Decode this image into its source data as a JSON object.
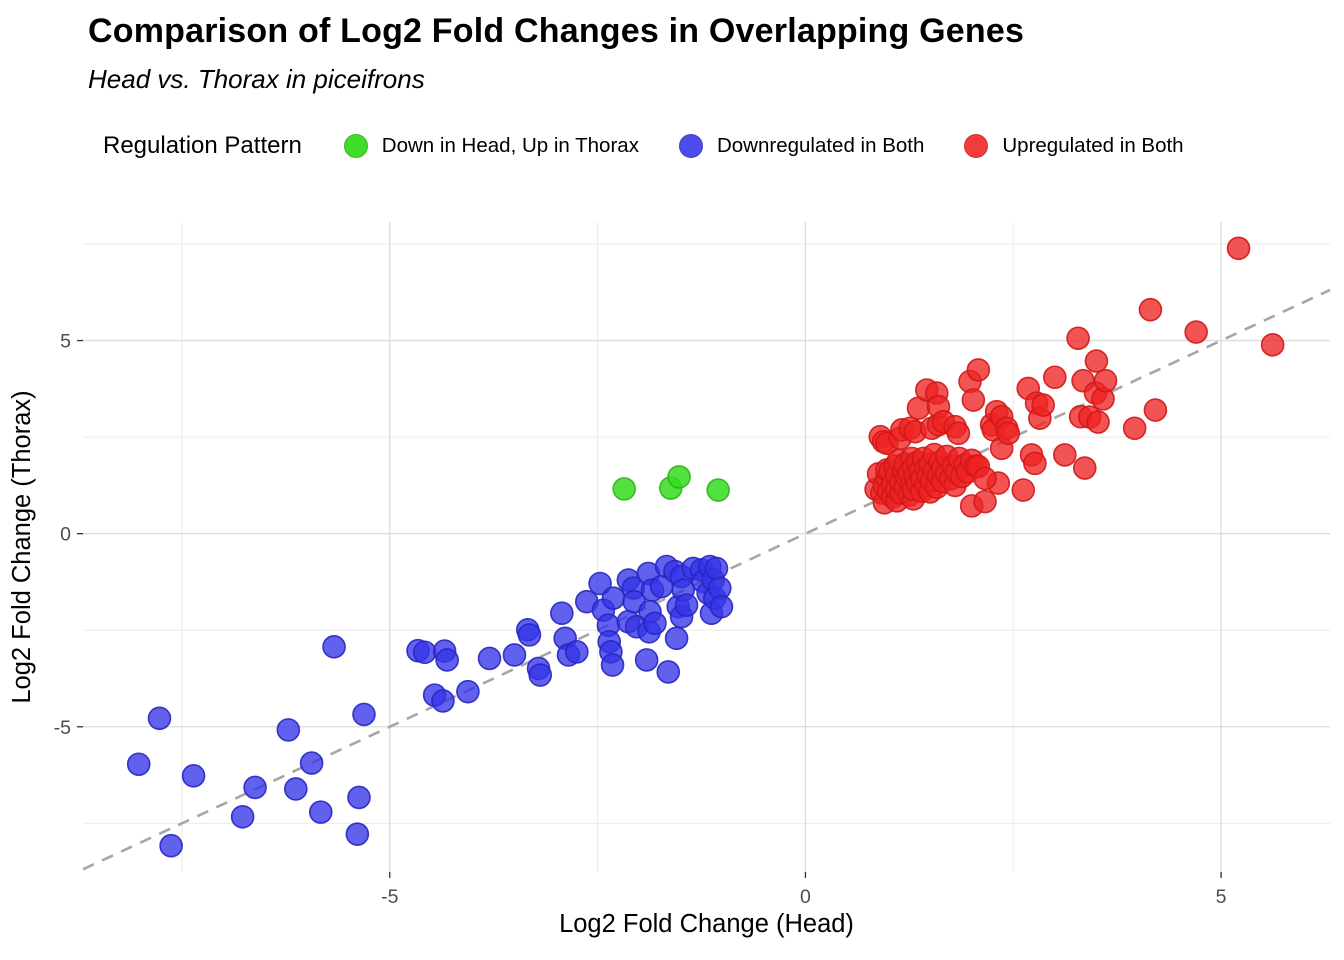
{
  "chart_data": {
    "type": "scatter",
    "title": "Comparison of Log2 Fold Changes in Overlapping Genes",
    "subtitle": "Head vs. Thorax in piceifrons",
    "xlabel": "Log2 Fold Change (Head)",
    "ylabel": "Log2 Fold Change (Thorax)",
    "legend_title": "Regulation Pattern",
    "legend_position": "top",
    "grid": "on",
    "x_range": [
      -8.69,
      6.31
    ],
    "y_range": [
      -8.76,
      8.07
    ],
    "x_ticks": [
      -5,
      0,
      5
    ],
    "y_ticks": [
      -5,
      0,
      5
    ],
    "x_tick_labels": [
      "-5",
      "0",
      "5"
    ],
    "y_tick_labels": [
      "-5",
      "0",
      "5"
    ],
    "x_minor_ticks": [
      -7.5,
      -2.5,
      2.5
    ],
    "y_minor_ticks": [
      -7.5,
      -2.5,
      2.5,
      7.5
    ],
    "identity_line": {
      "slope": 1,
      "intercept": 0,
      "style": "dashed",
      "color": "#a6a6a6"
    },
    "point_radius": 11,
    "series": [
      {
        "name": "Down in Head, Up in Thorax",
        "color": "#35dc1f",
        "stroke": "#2bb518",
        "opacity": 0.85,
        "points": [
          [
            -2.18,
            1.16
          ],
          [
            -1.62,
            1.18
          ],
          [
            -1.52,
            1.47
          ],
          [
            -1.05,
            1.13
          ]
        ]
      },
      {
        "name": "Downregulated in Both",
        "color": "#3434e8",
        "stroke": "#2626c0",
        "opacity": 0.78,
        "points": [
          [
            -8.02,
            -5.97
          ],
          [
            -7.77,
            -4.78
          ],
          [
            -7.63,
            -8.08
          ],
          [
            -7.36,
            -6.27
          ],
          [
            -6.77,
            -7.33
          ],
          [
            -6.62,
            -6.57
          ],
          [
            -6.22,
            -5.08
          ],
          [
            -6.13,
            -6.61
          ],
          [
            -5.94,
            -5.94
          ],
          [
            -5.83,
            -7.21
          ],
          [
            -5.67,
            -2.93
          ],
          [
            -5.39,
            -7.78
          ],
          [
            -5.37,
            -6.83
          ],
          [
            -5.31,
            -4.68
          ],
          [
            -4.66,
            -3.03
          ],
          [
            -4.58,
            -3.07
          ],
          [
            -4.46,
            -4.18
          ],
          [
            -4.36,
            -4.33
          ],
          [
            -4.34,
            -3.04
          ],
          [
            -4.31,
            -3.27
          ],
          [
            -4.06,
            -4.09
          ],
          [
            -3.8,
            -3.23
          ],
          [
            -3.5,
            -3.14
          ],
          [
            -3.34,
            -2.49
          ],
          [
            -3.32,
            -2.62
          ],
          [
            -3.21,
            -3.49
          ],
          [
            -3.19,
            -3.66
          ],
          [
            -2.93,
            -2.06
          ],
          [
            -2.89,
            -2.71
          ],
          [
            -2.85,
            -3.14
          ],
          [
            -2.75,
            -3.06
          ],
          [
            -2.63,
            -1.76
          ],
          [
            -2.47,
            -1.29
          ],
          [
            -2.43,
            -1.98
          ],
          [
            -2.37,
            -2.37
          ],
          [
            -2.36,
            -2.8
          ],
          [
            -2.34,
            -3.06
          ],
          [
            -2.32,
            -3.4
          ],
          [
            -2.31,
            -1.67
          ],
          [
            -2.13,
            -1.2
          ],
          [
            -2.13,
            -2.28
          ],
          [
            -2.07,
            -1.41
          ],
          [
            -2.06,
            -1.76
          ],
          [
            -2.03,
            -2.41
          ],
          [
            -1.91,
            -3.27
          ],
          [
            -1.89,
            -1.03
          ],
          [
            -1.88,
            -2.54
          ],
          [
            -1.87,
            -2.02
          ],
          [
            -1.84,
            -1.46
          ],
          [
            -1.81,
            -2.32
          ],
          [
            -1.73,
            -1.37
          ],
          [
            -1.67,
            -0.85
          ],
          [
            -1.65,
            -3.58
          ],
          [
            -1.57,
            -0.98
          ],
          [
            -1.55,
            -2.71
          ],
          [
            -1.53,
            -1.89
          ],
          [
            -1.49,
            -1.11
          ],
          [
            -1.49,
            -2.15
          ],
          [
            -1.47,
            -1.46
          ],
          [
            -1.43,
            -1.85
          ],
          [
            -1.35,
            -0.9
          ],
          [
            -1.25,
            -0.94
          ],
          [
            -1.23,
            -1.24
          ],
          [
            -1.17,
            -1.54
          ],
          [
            -1.15,
            -0.85
          ],
          [
            -1.13,
            -2.06
          ],
          [
            -1.11,
            -1.2
          ],
          [
            -1.09,
            -1.67
          ],
          [
            -1.07,
            -0.9
          ],
          [
            -1.03,
            -1.41
          ],
          [
            -1.01,
            -1.89
          ]
        ]
      },
      {
        "name": "Upregulated in Both",
        "color": "#ee2222",
        "stroke": "#cf1717",
        "opacity": 0.78,
        "points": [
          [
            0.85,
            1.15
          ],
          [
            0.88,
            1.55
          ],
          [
            0.92,
            1.05
          ],
          [
            0.95,
            0.8
          ],
          [
            0.95,
            1.25
          ],
          [
            0.98,
            1.45
          ],
          [
            0.98,
            1.65
          ],
          [
            1.0,
            1.1
          ],
          [
            1.02,
            1.62
          ],
          [
            1.05,
            0.95
          ],
          [
            1.05,
            1.3
          ],
          [
            1.08,
            1.75
          ],
          [
            1.1,
            0.85
          ],
          [
            1.1,
            1.15
          ],
          [
            1.1,
            1.5
          ],
          [
            1.12,
            1.9
          ],
          [
            1.15,
            1.05
          ],
          [
            1.15,
            1.35
          ],
          [
            1.18,
            1.62
          ],
          [
            1.2,
            1.2
          ],
          [
            1.2,
            1.8
          ],
          [
            1.22,
            1.45
          ],
          [
            1.25,
            1.0
          ],
          [
            1.25,
            1.58
          ],
          [
            1.28,
            1.3
          ],
          [
            1.28,
            1.95
          ],
          [
            1.3,
            0.9
          ],
          [
            1.3,
            1.15
          ],
          [
            1.3,
            1.7
          ],
          [
            1.32,
            1.48
          ],
          [
            1.35,
            1.28
          ],
          [
            1.35,
            1.85
          ],
          [
            1.38,
            1.6
          ],
          [
            1.4,
            1.1
          ],
          [
            1.4,
            1.42
          ],
          [
            1.42,
            1.95
          ],
          [
            1.45,
            1.25
          ],
          [
            1.45,
            1.68
          ],
          [
            1.48,
            1.5
          ],
          [
            1.5,
            1.08
          ],
          [
            1.5,
            1.8
          ],
          [
            1.52,
            1.38
          ],
          [
            1.55,
            1.62
          ],
          [
            1.55,
            2.05
          ],
          [
            1.58,
            1.2
          ],
          [
            1.6,
            1.5
          ],
          [
            1.62,
            1.85
          ],
          [
            1.65,
            1.35
          ],
          [
            1.65,
            1.7
          ],
          [
            1.7,
            1.55
          ],
          [
            1.7,
            2.0
          ],
          [
            1.75,
            1.42
          ],
          [
            1.78,
            1.75
          ],
          [
            1.8,
            1.25
          ],
          [
            1.82,
            1.6
          ],
          [
            1.85,
            1.95
          ],
          [
            1.88,
            1.48
          ],
          [
            1.92,
            1.78
          ],
          [
            1.95,
            1.6
          ],
          [
            2.0,
            0.72
          ],
          [
            2.0,
            1.9
          ],
          [
            2.05,
            1.75
          ],
          [
            2.16,
            0.83
          ],
          [
            2.32,
            1.31
          ],
          [
            0.9,
            2.51
          ],
          [
            0.94,
            2.38
          ],
          [
            0.98,
            2.34
          ],
          [
            1.14,
            2.47
          ],
          [
            1.16,
            2.69
          ],
          [
            1.26,
            2.73
          ],
          [
            1.32,
            2.64
          ],
          [
            1.36,
            3.25
          ],
          [
            1.46,
            3.72
          ],
          [
            1.52,
            2.73
          ],
          [
            1.58,
            3.64
          ],
          [
            1.6,
            2.82
          ],
          [
            1.6,
            3.29
          ],
          [
            1.66,
            2.9
          ],
          [
            1.8,
            2.77
          ],
          [
            1.84,
            2.6
          ],
          [
            1.98,
            3.94
          ],
          [
            2.02,
            3.46
          ],
          [
            2.08,
            1.74
          ],
          [
            2.08,
            4.24
          ],
          [
            2.16,
            1.43
          ],
          [
            2.24,
            2.82
          ],
          [
            2.26,
            2.69
          ],
          [
            2.3,
            3.16
          ],
          [
            2.36,
            2.21
          ],
          [
            2.36,
            3.03
          ],
          [
            2.42,
            2.73
          ],
          [
            2.44,
            2.6
          ],
          [
            2.62,
            1.13
          ],
          [
            2.68,
            3.76
          ],
          [
            2.72,
            2.04
          ],
          [
            2.76,
            1.82
          ],
          [
            2.78,
            3.38
          ],
          [
            2.82,
            2.99
          ],
          [
            2.86,
            3.33
          ],
          [
            3.0,
            4.05
          ],
          [
            3.12,
            2.04
          ],
          [
            3.28,
            5.06
          ],
          [
            3.31,
            3.03
          ],
          [
            3.34,
            3.96
          ],
          [
            3.36,
            1.7
          ],
          [
            3.42,
            3.02
          ],
          [
            3.49,
            3.64
          ],
          [
            3.5,
            4.47
          ],
          [
            3.52,
            2.89
          ],
          [
            3.58,
            3.49
          ],
          [
            3.61,
            3.96
          ],
          [
            3.96,
            2.73
          ],
          [
            4.15,
            5.8
          ],
          [
            4.21,
            3.2
          ],
          [
            4.7,
            5.22
          ],
          [
            5.21,
            7.39
          ],
          [
            5.62,
            4.89
          ]
        ]
      }
    ],
    "style": {
      "major_grid_color": "#dbdbdb",
      "minor_grid_color": "#ebebeb",
      "tick_color": "#333333",
      "tick_label_color": "#4d4d4d",
      "background": "#ffffff"
    }
  }
}
